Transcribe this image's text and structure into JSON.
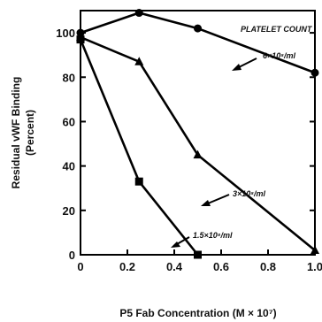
{
  "chart_data": {
    "type": "line",
    "xlabel": "P5 Fab  Concentration (M × 10⁷)",
    "ylabel": "Residual vWF Binding",
    "ylabel_unit": "(Percent)",
    "xlim": [
      0,
      1.0
    ],
    "ylim": [
      0,
      110
    ],
    "x_ticks": [
      "0",
      "0.2",
      "0.4",
      "0.6",
      "0.8",
      "1.0"
    ],
    "y_ticks": [
      "0",
      "20",
      "40",
      "60",
      "80",
      "100"
    ],
    "grid": false,
    "legend_title": "PLATELET COUNT",
    "series": [
      {
        "name": "6×10⁸/ml",
        "marker": "circle",
        "x": [
          0,
          0.25,
          0.5,
          1.0
        ],
        "y": [
          100,
          109,
          102,
          82
        ]
      },
      {
        "name": "3×10⁸/ml",
        "marker": "triangle",
        "x": [
          0,
          0.25,
          0.5,
          1.0
        ],
        "y": [
          98,
          87,
          45,
          2
        ]
      },
      {
        "name": "1.5×10⁸/ml",
        "marker": "square",
        "x": [
          0,
          0.25,
          0.5
        ],
        "y": [
          97,
          33,
          0
        ]
      }
    ]
  }
}
